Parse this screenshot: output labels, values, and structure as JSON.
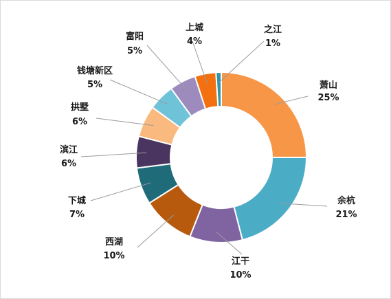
{
  "chart_data": {
    "type": "pie",
    "donut": true,
    "title": "",
    "legend": "none",
    "slices": [
      {
        "label": "萧山",
        "value": 25,
        "pct": "25%",
        "color": "#F79646"
      },
      {
        "label": "余杭",
        "value": 21,
        "pct": "21%",
        "color": "#4BACC6"
      },
      {
        "label": "江干",
        "value": 10,
        "pct": "10%",
        "color": "#8064A2"
      },
      {
        "label": "西湖",
        "value": 10,
        "pct": "10%",
        "color": "#B85A0E"
      },
      {
        "label": "下城",
        "value": 7,
        "pct": "7%",
        "color": "#1F6B7A"
      },
      {
        "label": "滨江",
        "value": 6,
        "pct": "6%",
        "color": "#4A3560"
      },
      {
        "label": "拱墅",
        "value": 6,
        "pct": "6%",
        "color": "#FAB97E"
      },
      {
        "label": "钱塘新区",
        "value": 5,
        "pct": "5%",
        "color": "#6EC3D9"
      },
      {
        "label": "富阳",
        "value": 5,
        "pct": "5%",
        "color": "#9E8BBD"
      },
      {
        "label": "上城",
        "value": 4,
        "pct": "4%",
        "color": "#F2700F"
      },
      {
        "label": "之江",
        "value": 1,
        "pct": "1%",
        "color": "#2E95A8"
      }
    ]
  }
}
